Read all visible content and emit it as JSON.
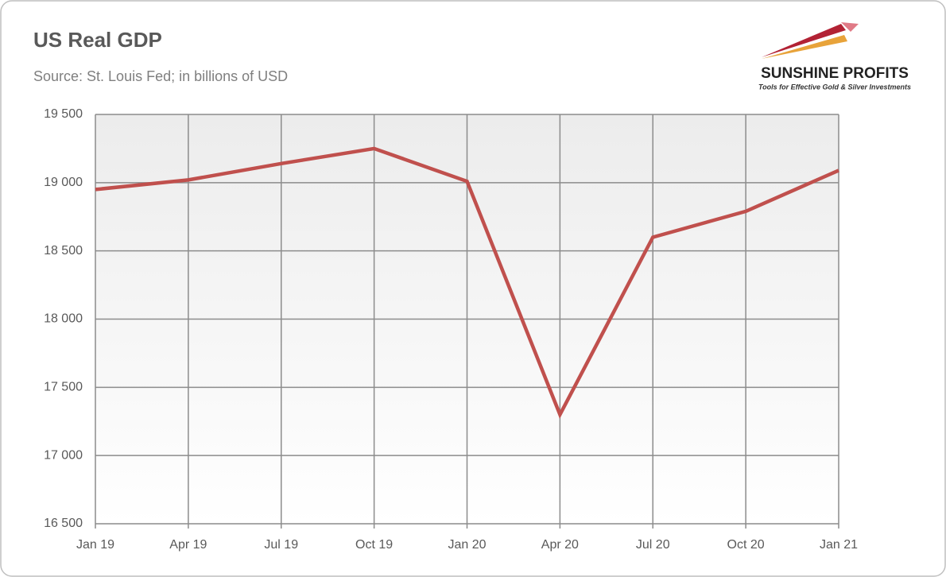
{
  "chart_data": {
    "type": "line",
    "title": "US Real GDP",
    "subtitle": "Source: St. Louis Fed; in billions of USD",
    "categories": [
      "Jan 19",
      "Apr 19",
      "Jul 19",
      "Oct 19",
      "Jan 20",
      "Apr 20",
      "Jul 20",
      "Oct 20",
      "Jan 21"
    ],
    "values": [
      18950,
      19020,
      19140,
      19250,
      19010,
      17300,
      18600,
      18790,
      19090
    ],
    "color": "#c0504d",
    "ylim": [
      16500,
      19500
    ],
    "yticks": [
      {
        "value": 16500,
        "label": "16 500"
      },
      {
        "value": 17000,
        "label": "17 000"
      },
      {
        "value": 17500,
        "label": "17 500"
      },
      {
        "value": 18000,
        "label": "18 000"
      },
      {
        "value": 18500,
        "label": "18 500"
      },
      {
        "value": 19000,
        "label": "19 000"
      },
      {
        "value": 19500,
        "label": "19 500"
      }
    ],
    "grid": true
  },
  "logo": {
    "name": "SUNSHINE PROFITS",
    "tagline": "Tools for Effective Gold & Silver Investments"
  }
}
